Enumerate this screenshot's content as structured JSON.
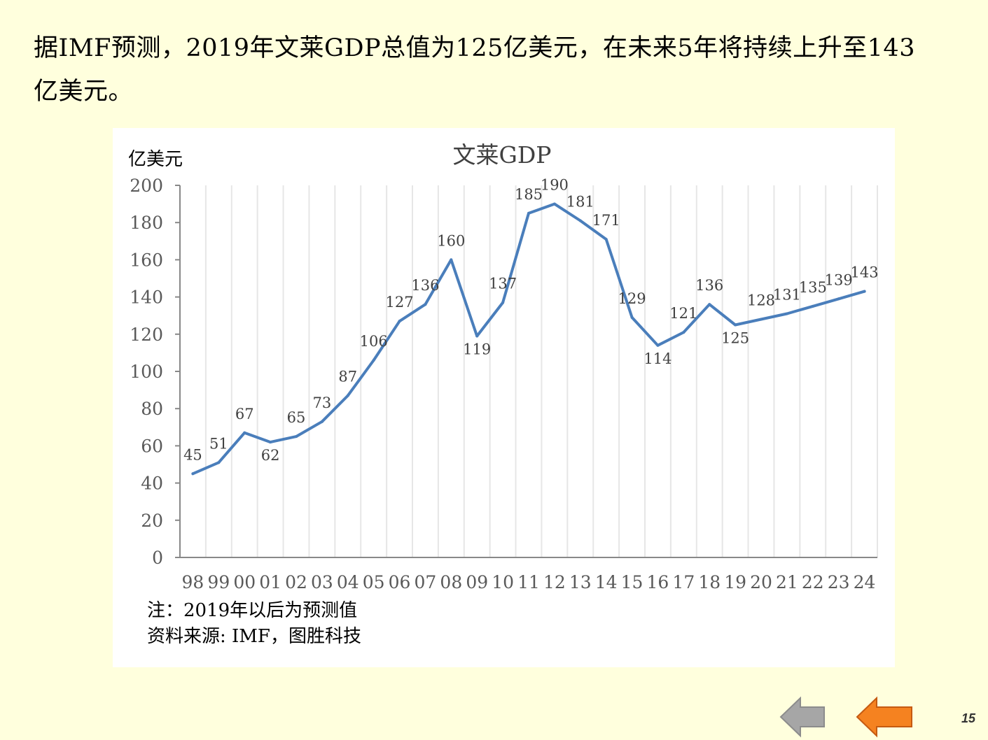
{
  "headline_line1": "据IMF预测，2019年文莱GDP总值为125亿美元，在未来5年将持续上升至143",
  "headline_line2": "亿美元。",
  "notes": {
    "note": "注：2019年以后为预测值",
    "source": "资料来源: IMF，图胜科技"
  },
  "nav": {
    "prev_icon": "arrow-left-gray",
    "next_icon": "arrow-left-orange"
  },
  "page_number": "15",
  "colors": {
    "line": "#4A7EBB",
    "background": "#FFFFDD",
    "next_arrow": "#F58220",
    "prev_arrow": "#A6A6A6"
  },
  "chart_data": {
    "type": "line",
    "title": "文莱GDP",
    "ylabel": "亿美元",
    "xlabel": "",
    "ylim": [
      0,
      200
    ],
    "yticks": [
      "0",
      "20",
      "40",
      "60",
      "80",
      "100",
      "120",
      "140",
      "160",
      "180",
      "200"
    ],
    "categories": [
      "98",
      "99",
      "00",
      "01",
      "02",
      "03",
      "04",
      "05",
      "06",
      "07",
      "08",
      "09",
      "10",
      "11",
      "12",
      "13",
      "14",
      "15",
      "16",
      "17",
      "18",
      "19",
      "20",
      "21",
      "22",
      "23",
      "24"
    ],
    "series": [
      {
        "values": [
          45,
          51,
          67,
          62,
          65,
          73,
          87,
          106,
          127,
          136,
          160,
          119,
          137,
          185,
          190,
          181,
          171,
          129,
          114,
          121,
          136,
          125,
          128,
          131,
          135,
          139,
          143
        ]
      }
    ],
    "grid": "vertical",
    "legend": "none"
  }
}
